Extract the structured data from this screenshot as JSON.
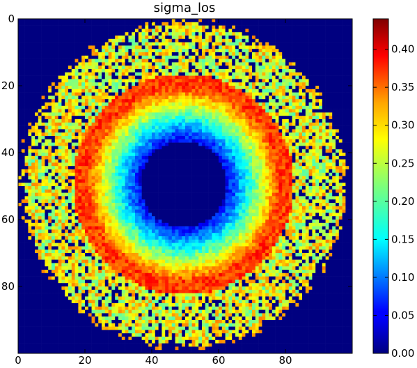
{
  "chart_data": {
    "type": "heatmap",
    "title": "sigma_los",
    "xlabel": "",
    "ylabel": "",
    "xlim": [
      0,
      100
    ],
    "ylim": [
      100,
      0
    ],
    "x_ticks": [
      "0",
      "20",
      "40",
      "60",
      "80"
    ],
    "y_ticks": [
      "0",
      "20",
      "40",
      "60",
      "80"
    ],
    "colorbar": {
      "colormap": "jet",
      "range": [
        0.0,
        0.44
      ],
      "ticks": [
        "0.00",
        "0.05",
        "0.10",
        "0.15",
        "0.20",
        "0.25",
        "0.30",
        "0.35",
        "0.40"
      ]
    },
    "grid": false,
    "image_size": [
      100,
      100
    ],
    "structure": {
      "center": [
        49,
        49
      ],
      "background_value": 0.0,
      "inner_hole_radius": 13,
      "ring_peak_radius": 29,
      "ring_peak_value": 0.36,
      "outer_radius": 48,
      "outer_noisy_value": 0.25
    }
  }
}
